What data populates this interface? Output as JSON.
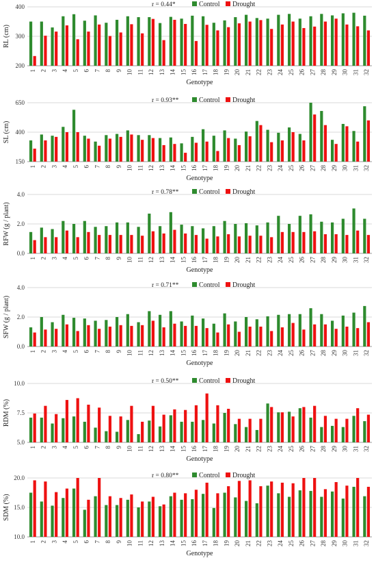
{
  "colors": {
    "control": "#2e8b2e",
    "drought": "#ee1111",
    "grid": "#d9d9d9",
    "axis": "#999999"
  },
  "legend": {
    "control": "Control",
    "drought": "Drought"
  },
  "xlabel": "Genotype",
  "chart_data": [
    {
      "type": "bar",
      "ylabel": "RL (cm)",
      "annotation": "r = 0.44*",
      "ylim": [
        200,
        400
      ],
      "yticks": [
        "200",
        "300",
        "400"
      ],
      "categories": [
        "1",
        "2",
        "3",
        "4",
        "5",
        "6",
        "7",
        "8",
        "9",
        "10",
        "11",
        "12",
        "13",
        "14",
        "15",
        "16",
        "17",
        "18",
        "19",
        "20",
        "21",
        "22",
        "23",
        "24",
        "25",
        "26",
        "27",
        "28",
        "29",
        "30",
        "31",
        "32"
      ],
      "series": [
        {
          "name": "Control",
          "values": [
            350,
            350,
            330,
            368,
            375,
            353,
            371,
            346,
            356,
            368,
            365,
            365,
            345,
            366,
            360,
            370,
            368,
            346,
            354,
            365,
            373,
            362,
            360,
            373,
            376,
            360,
            368,
            376,
            371,
            378,
            380,
            370
          ]
        },
        {
          "name": "Drought",
          "values": [
            233,
            302,
            316,
            337,
            290,
            316,
            340,
            301,
            313,
            341,
            310,
            359,
            287,
            356,
            342,
            284,
            339,
            320,
            331,
            344,
            350,
            355,
            325,
            340,
            350,
            328,
            333,
            350,
            360,
            340,
            334,
            320
          ]
        }
      ],
      "legend_position": "top-center",
      "grid": true
    },
    {
      "type": "bar",
      "ylabel": "SL (cm)",
      "annotation": "r = 0.93**",
      "ylim": [
        150,
        650
      ],
      "yticks": [
        "150",
        "400",
        "650"
      ],
      "categories": [
        "1",
        "2",
        "3",
        "4",
        "5",
        "6",
        "7",
        "8",
        "9",
        "10",
        "11",
        "12",
        "13",
        "14",
        "15",
        "16",
        "17",
        "18",
        "19",
        "20",
        "21",
        "22",
        "23",
        "24",
        "25",
        "26",
        "27",
        "28",
        "29",
        "30",
        "31",
        "32"
      ],
      "series": [
        {
          "name": "Control",
          "values": [
            330,
            380,
            370,
            445,
            590,
            370,
            320,
            375,
            385,
            415,
            375,
            375,
            350,
            355,
            305,
            360,
            425,
            370,
            415,
            345,
            405,
            495,
            420,
            395,
            440,
            385,
            660,
            580,
            335,
            470,
            410,
            620
          ]
        },
        {
          "name": "Drought",
          "values": [
            260,
            330,
            360,
            400,
            400,
            345,
            285,
            345,
            360,
            380,
            335,
            350,
            290,
            300,
            225,
            310,
            320,
            240,
            350,
            290,
            365,
            460,
            315,
            330,
            400,
            330,
            550,
            460,
            300,
            450,
            320,
            500
          ]
        }
      ],
      "legend_position": "top-center",
      "grid": true
    },
    {
      "type": "bar",
      "ylabel": "RFW (g / plant)",
      "annotation": "r = 0.78**",
      "ylim": [
        0.0,
        4.0
      ],
      "yticks": [
        "0.0",
        "2.0",
        "4.0"
      ],
      "categories": [
        "1",
        "2",
        "3",
        "4",
        "5",
        "6",
        "7",
        "8",
        "9",
        "10",
        "11",
        "12",
        "13",
        "14",
        "15",
        "16",
        "17",
        "18",
        "19",
        "20",
        "21",
        "22",
        "23",
        "24",
        "25",
        "26",
        "27",
        "28",
        "29",
        "30",
        "31",
        "32"
      ],
      "series": [
        {
          "name": "Control",
          "values": [
            1.45,
            1.75,
            1.65,
            2.2,
            2.0,
            2.2,
            1.8,
            1.85,
            2.1,
            2.1,
            1.8,
            2.7,
            1.85,
            2.8,
            1.95,
            1.85,
            1.7,
            1.85,
            2.2,
            2.0,
            2.05,
            1.9,
            2.1,
            2.55,
            2.0,
            2.55,
            2.65,
            2.15,
            2.1,
            2.35,
            3.05,
            2.35
          ]
        },
        {
          "name": "Drought",
          "values": [
            0.9,
            1.1,
            1.1,
            1.55,
            1.1,
            1.45,
            1.25,
            1.25,
            1.25,
            1.25,
            1.2,
            1.5,
            1.35,
            1.6,
            1.35,
            1.25,
            1.0,
            1.15,
            1.3,
            1.15,
            1.2,
            1.2,
            1.1,
            1.45,
            1.45,
            1.45,
            1.5,
            1.3,
            1.3,
            1.25,
            1.55,
            1.25
          ]
        }
      ],
      "legend_position": "top-center",
      "grid": true
    },
    {
      "type": "bar",
      "ylabel": "SFW (g / plant)",
      "annotation": "r = 0.71**",
      "ylim": [
        0.0,
        4.0
      ],
      "yticks": [
        "0.0",
        "2.0",
        "4.0"
      ],
      "categories": [
        "1",
        "2",
        "3",
        "4",
        "5",
        "6",
        "7",
        "8",
        "9",
        "10",
        "11",
        "12",
        "13",
        "14",
        "15",
        "16",
        "17",
        "18",
        "19",
        "20",
        "21",
        "22",
        "23",
        "24",
        "25",
        "26",
        "27",
        "28",
        "29",
        "30",
        "31",
        "32"
      ],
      "series": [
        {
          "name": "Control",
          "values": [
            1.3,
            2.0,
            1.65,
            2.15,
            1.95,
            1.9,
            1.75,
            1.8,
            2.0,
            2.2,
            1.65,
            2.4,
            2.15,
            2.4,
            1.7,
            2.1,
            1.9,
            1.55,
            2.25,
            1.7,
            2.0,
            1.85,
            2.05,
            2.15,
            2.2,
            2.2,
            2.6,
            2.2,
            1.75,
            2.1,
            2.3,
            2.75
          ]
        },
        {
          "name": "Drought",
          "values": [
            0.95,
            1.15,
            1.2,
            1.5,
            1.05,
            1.45,
            1.2,
            1.35,
            1.45,
            1.4,
            1.45,
            1.75,
            1.3,
            1.55,
            1.4,
            1.4,
            1.25,
            0.95,
            1.5,
            1.0,
            1.35,
            1.35,
            1.05,
            1.3,
            1.6,
            1.15,
            1.5,
            1.5,
            1.2,
            1.35,
            1.25,
            1.65
          ]
        }
      ],
      "legend_position": "top-center",
      "grid": true
    },
    {
      "type": "bar",
      "ylabel": "RDM (%)",
      "annotation": "r = 0.50**",
      "ylim": [
        5.0,
        10.0
      ],
      "yticks": [
        "5.0",
        "7.5",
        "10.0"
      ],
      "categories": [
        "1",
        "2",
        "3",
        "4",
        "5",
        "6",
        "7",
        "8",
        "9",
        "10",
        "11",
        "12",
        "13",
        "14",
        "15",
        "16",
        "17",
        "18",
        "19",
        "20",
        "21",
        "22",
        "23",
        "24",
        "25",
        "26",
        "27",
        "28",
        "29",
        "30",
        "31",
        "32"
      ],
      "series": [
        {
          "name": "Control",
          "values": [
            7.1,
            7.1,
            6.6,
            7.05,
            7.2,
            6.75,
            6.25,
            5.95,
            5.9,
            6.9,
            5.7,
            6.85,
            6.35,
            7.3,
            6.75,
            6.75,
            6.9,
            6.6,
            7.5,
            6.55,
            6.3,
            6.05,
            8.3,
            7.55,
            7.6,
            7.9,
            7.1,
            6.3,
            6.4,
            6.3,
            7.25,
            6.8
          ]
        },
        {
          "name": "Drought",
          "values": [
            7.45,
            8.1,
            7.4,
            8.6,
            8.75,
            8.2,
            7.95,
            7.25,
            7.2,
            8.1,
            6.75,
            8.1,
            7.35,
            7.8,
            7.75,
            8.15,
            9.15,
            8.15,
            7.85,
            7.0,
            7.0,
            7.0,
            8.0,
            7.55,
            7.2,
            8.0,
            8.1,
            7.25,
            7.0,
            7.0,
            7.9,
            7.35
          ]
        }
      ],
      "legend_position": "top-center",
      "grid": true
    },
    {
      "type": "bar",
      "ylabel": "SDM (%)",
      "annotation": "r = 0.80**",
      "ylim": [
        10.0,
        20.0
      ],
      "yticks": [
        "10.0",
        "15.0",
        "20.0"
      ],
      "categories": [
        "1",
        "2",
        "3",
        "4",
        "5",
        "6",
        "7",
        "8",
        "9",
        "10",
        "11",
        "12",
        "13",
        "14",
        "15",
        "16",
        "17",
        "18",
        "19",
        "20",
        "21",
        "22",
        "23",
        "24",
        "25",
        "26",
        "27",
        "28",
        "29",
        "30",
        "31",
        "32"
      ],
      "series": [
        {
          "name": "Control",
          "values": [
            17.5,
            16.0,
            15.3,
            16.6,
            18.2,
            14.6,
            16.9,
            15.4,
            15.4,
            16.3,
            15.0,
            16.0,
            15.2,
            16.9,
            16.3,
            16.4,
            17.3,
            14.9,
            17.5,
            16.7,
            16.1,
            15.7,
            18.7,
            17.4,
            16.8,
            17.9,
            17.8,
            16.8,
            17.7,
            16.5,
            18.5,
            16.9
          ]
        },
        {
          "name": "Drought",
          "values": [
            19.6,
            19.4,
            17.6,
            18.2,
            20.8,
            16.3,
            20.0,
            16.9,
            16.6,
            17.2,
            16.0,
            16.8,
            15.5,
            17.5,
            17.4,
            18.0,
            19.2,
            17.4,
            18.6,
            19.5,
            19.6,
            18.6,
            19.4,
            19.2,
            19.1,
            20.3,
            20.2,
            18.1,
            19.3,
            18.7,
            20.2,
            18.5
          ]
        }
      ],
      "legend_position": "top-center",
      "grid": true
    }
  ]
}
